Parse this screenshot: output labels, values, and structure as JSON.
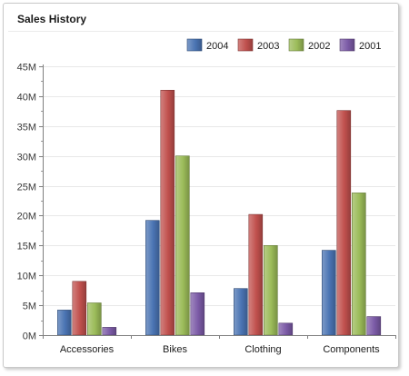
{
  "panel": {
    "title": "Sales History"
  },
  "colors": {
    "2004": "#4a74b3",
    "2003": "#c0504d",
    "2002": "#9bbb59",
    "2001": "#7b5aa6"
  },
  "chart_data": {
    "type": "bar",
    "title": "Sales History",
    "xlabel": "",
    "ylabel": "",
    "categories": [
      "Accessories",
      "Bikes",
      "Clothing",
      "Components"
    ],
    "series": [
      {
        "name": "2004",
        "values": [
          4.2,
          19.2,
          7.8,
          14.2
        ]
      },
      {
        "name": "2003",
        "values": [
          9.0,
          41.0,
          20.2,
          37.6
        ]
      },
      {
        "name": "2002",
        "values": [
          5.4,
          30.0,
          15.0,
          23.8
        ]
      },
      {
        "name": "2001",
        "values": [
          1.3,
          7.1,
          2.0,
          3.1
        ]
      }
    ],
    "ylim": [
      0,
      45
    ],
    "y_ticks": [
      0,
      5,
      10,
      15,
      20,
      25,
      30,
      35,
      40,
      45
    ],
    "y_tick_labels": [
      "0M",
      "5M",
      "10M",
      "15M",
      "20M",
      "25M",
      "30M",
      "35M",
      "40M",
      "45M"
    ],
    "value_unit": "millions",
    "legend_position": "top-right",
    "grid": true
  }
}
